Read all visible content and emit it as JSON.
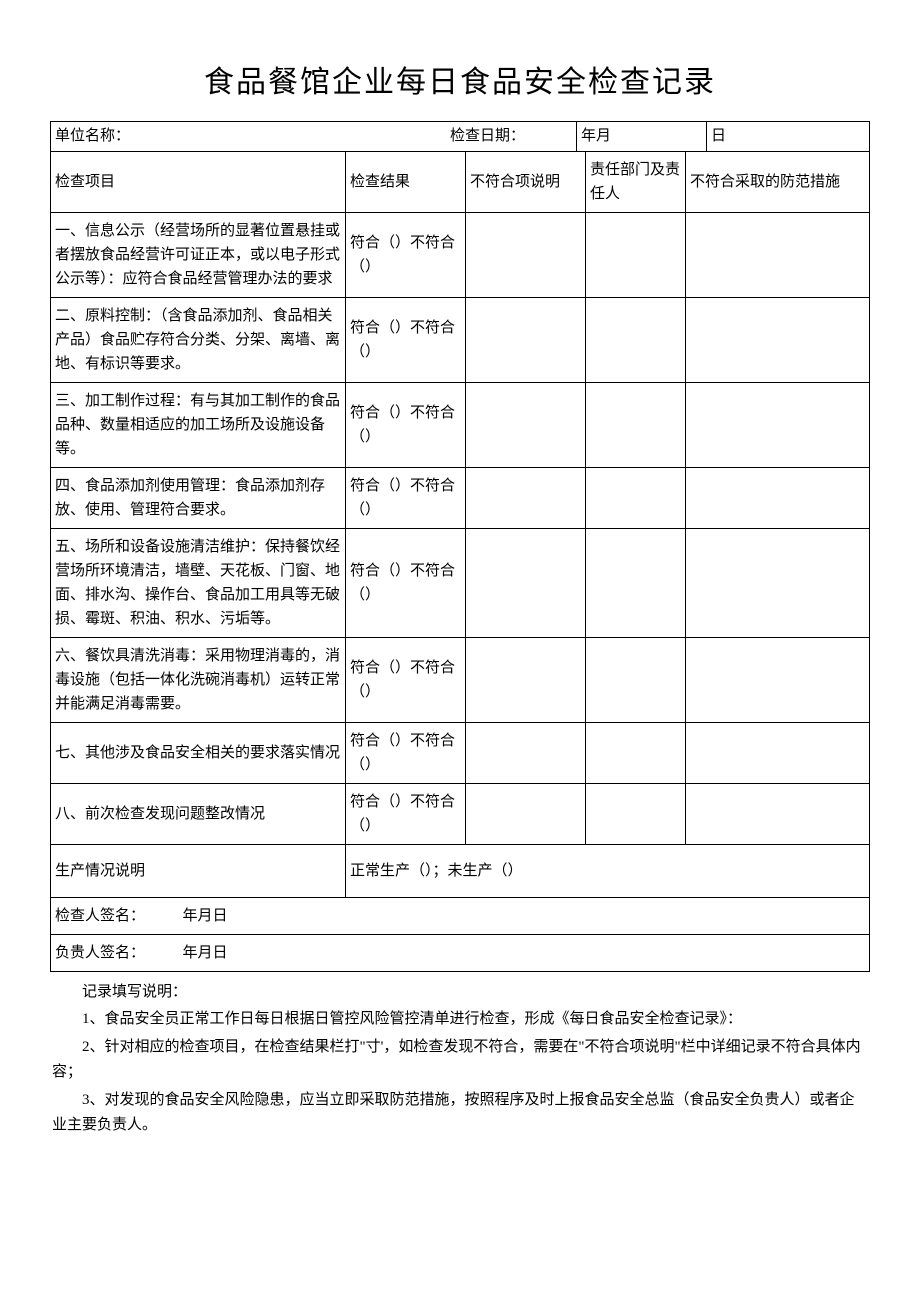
{
  "title": "食品餐馆企业每日食品安全检查记录",
  "header": {
    "unit_label": "单位名称：",
    "date_label": "检查日期：",
    "year_month": "年月",
    "day": "日"
  },
  "columns": {
    "project": "检查项目",
    "result": "检查结果",
    "nonconform_desc": "不符合项说明",
    "responsible": "责任部门及责任人",
    "measure": "不符合采取的防范措施"
  },
  "result_text": "符合（）不符合（）",
  "items": [
    "一、信息公示（经营场所的显著位置悬挂或者摆放食品经营许可证正本，或以电子形式公示等）：应符合食品经营管理办法的要求",
    "二、原料控制：（含食品添加剂、食品相关产品）食品贮存符合分类、分架、离墙、离地、有标识等要求。",
    "三、加工制作过程：有与其加工制作的食品品种、数量相适应的加工场所及设施设备等。",
    "四、食品添加剂使用管理：食品添加剂存放、使用、管理符合要求。",
    "五、场所和设备设施清洁维护：保持餐饮经营场所环境清洁，墙壁、天花板、门窗、地面、排水沟、操作台、食品加工用具等无破损、霉斑、积油、积水、污垢等。",
    "六、餐饮具清洗消毒：采用物理消毒的，消毒设施（包括一体化洗碗消毒机）运转正常并能满足消毒需要。",
    "七、其他涉及食品安全相关的要求落实情况",
    "八、前次检查发现问题整改情况"
  ],
  "production": {
    "label": "生产情况说明",
    "value": "正常生产（）；未生产（）"
  },
  "signatures": {
    "inspector": "检查人签名：　　　年月日",
    "responsible": "负贵人签名：　　　年月日"
  },
  "notes": {
    "heading": "记录填写说明：",
    "lines": [
      "1、食品安全员正常工作日每日根据日管控风险管控清单进行检查，形成《每日食品安全检查记录》：",
      "2、针对相应的检查项目，在检查结果栏打\"寸'，如检查发现不符合，需要在\"不符合项说明\"栏中详细记录不符合具体内容；",
      "3、对发现的食品安全风险隐患，应当立即采取防范措施，按照程序及时上报食品安全总监（食品安全负贵人）或者企业主要负责人。"
    ]
  }
}
